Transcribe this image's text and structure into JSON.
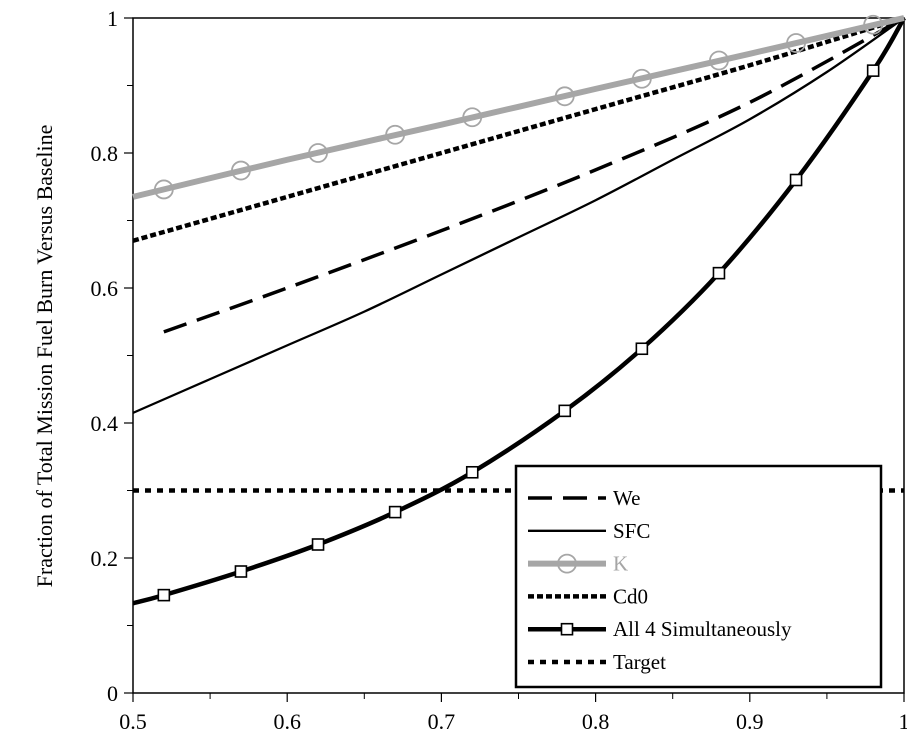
{
  "chart_data": {
    "type": "line",
    "title": "",
    "xlabel": "",
    "ylabel": "Fraction of Total Mission Fuel Burn Versus Baseline",
    "xlim": [
      0.5,
      1.0
    ],
    "ylim": [
      0,
      1.0
    ],
    "x_ticks": [
      "0.5",
      "0.6",
      "0.7",
      "0.8",
      "0.9",
      "1"
    ],
    "y_ticks": [
      "0",
      "0.2",
      "0.4",
      "0.6",
      "0.8",
      "1"
    ],
    "grid": false,
    "legend_position": "bottom-right",
    "series": [
      {
        "name": "We",
        "style": "dashed",
        "color": "#000000",
        "x": [
          0.52,
          0.6,
          0.7,
          0.8,
          0.9,
          1.0
        ],
        "y": [
          0.535,
          0.6,
          0.685,
          0.775,
          0.875,
          1.0
        ]
      },
      {
        "name": "SFC",
        "style": "solid-thin",
        "color": "#000000",
        "x": [
          0.5,
          0.55,
          0.6,
          0.65,
          0.7,
          0.75,
          0.8,
          0.85,
          0.9,
          0.95,
          1.0
        ],
        "y": [
          0.415,
          0.465,
          0.515,
          0.565,
          0.62,
          0.675,
          0.73,
          0.79,
          0.85,
          0.92,
          1.0
        ]
      },
      {
        "name": "K",
        "style": "solid-thick-gray-circles",
        "color": "#a6a6a6",
        "x": [
          0.5,
          0.6,
          0.7,
          0.8,
          0.9,
          1.0
        ],
        "y": [
          0.735,
          0.79,
          0.842,
          0.895,
          0.947,
          1.0
        ],
        "marker_x": [
          0.52,
          0.57,
          0.62,
          0.67,
          0.72,
          0.78,
          0.83,
          0.88,
          0.93,
          0.98
        ],
        "marker_y": [
          0.746,
          0.774,
          0.8,
          0.827,
          0.853,
          0.884,
          0.91,
          0.937,
          0.963,
          0.99
        ]
      },
      {
        "name": "Cd0",
        "style": "short-dash",
        "color": "#000000",
        "x": [
          0.5,
          0.6,
          0.7,
          0.8,
          0.9,
          1.0
        ],
        "y": [
          0.67,
          0.735,
          0.8,
          0.865,
          0.93,
          1.0
        ]
      },
      {
        "name": "All 4 Simultaneously",
        "style": "solid-thick-squares",
        "color": "#000000",
        "x": [
          0.5,
          0.52,
          0.57,
          0.62,
          0.67,
          0.72,
          0.78,
          0.83,
          0.88,
          0.93,
          0.98,
          1.0
        ],
        "y": [
          0.133,
          0.145,
          0.18,
          0.22,
          0.268,
          0.327,
          0.418,
          0.51,
          0.622,
          0.76,
          0.922,
          1.0
        ],
        "marker_x": [
          0.52,
          0.57,
          0.62,
          0.67,
          0.72,
          0.78,
          0.83,
          0.88,
          0.93,
          0.98
        ],
        "marker_y": [
          0.145,
          0.18,
          0.22,
          0.268,
          0.327,
          0.418,
          0.51,
          0.622,
          0.76,
          0.922
        ]
      },
      {
        "name": "Target",
        "style": "dotted",
        "color": "#000000",
        "x": [
          0.5,
          1.0
        ],
        "y": [
          0.3,
          0.3
        ]
      }
    ]
  }
}
